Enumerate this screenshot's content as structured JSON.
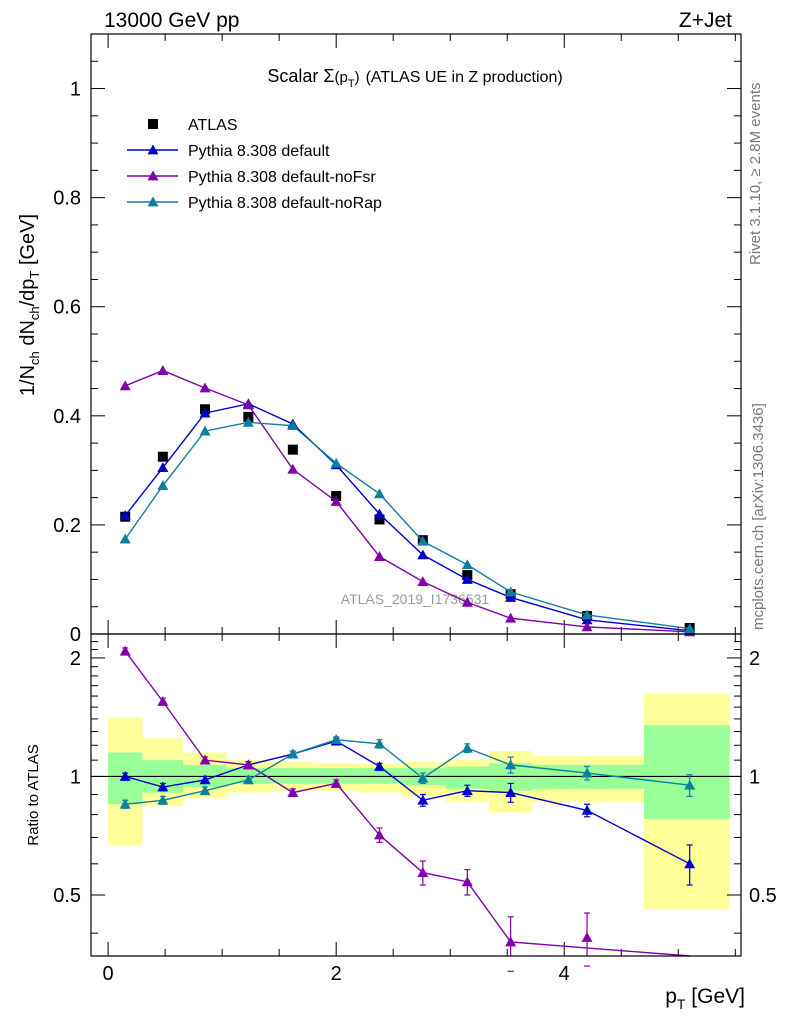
{
  "header": {
    "left": "13000 GeV pp",
    "right": "Z+Jet"
  },
  "side": {
    "rivet": "Rivet 3.1.10, ≥ 2.8M events",
    "mcplots": "mcplots.cern.ch [arXiv:1306.3436]"
  },
  "colors": {
    "atlas": "#000000",
    "default": "#0000cc",
    "noFsr": "#8000aa",
    "noRap": "#0f7fa0",
    "band_yellow": "#ffff99",
    "band_green": "#99ff99"
  },
  "chart_data": [
    {
      "type": "scatter",
      "panel": "main",
      "title_parts": {
        "prefix": "Scalar ",
        "sigma": "Σ",
        "arg_open": "(p",
        "arg_sub": "T",
        "arg_close": ")",
        "suffix": "(ATLAS UE in Z production)"
      },
      "ylabel_parts": [
        "1/N",
        "ch",
        " dN",
        "ch",
        "/dp",
        "T",
        " [GeV]"
      ],
      "xlim": [
        -0.15,
        5.55
      ],
      "ylim": [
        0,
        1.1
      ],
      "yticks": [
        0,
        0.2,
        0.4,
        0.6,
        0.8,
        1
      ],
      "ytick_labels": [
        "0",
        "0.2",
        "0.4",
        "0.6",
        "0.8",
        "1"
      ],
      "legend_position": "top-left",
      "watermark": "ATLAS_2019_I1736531",
      "x": [
        0.15,
        0.48,
        0.85,
        1.23,
        1.62,
        2.0,
        2.38,
        2.76,
        3.15,
        3.53,
        4.2,
        5.1
      ],
      "series": [
        {
          "name": "ATLAS",
          "marker": "square",
          "values": [
            0.215,
            0.325,
            0.412,
            0.398,
            0.338,
            0.253,
            0.21,
            0.172,
            0.108,
            0.073,
            0.033,
            0.011
          ]
        },
        {
          "name": "Pythia 8.308 default",
          "marker": "triangle",
          "values": [
            0.217,
            0.305,
            0.405,
            0.422,
            0.385,
            0.31,
            0.22,
            0.145,
            0.1,
            0.067,
            0.026,
            0.006
          ]
        },
        {
          "name": "Pythia 8.308 default-noFsr",
          "marker": "triangle",
          "values": [
            0.455,
            0.483,
            0.451,
            0.42,
            0.302,
            0.243,
            0.142,
            0.096,
            0.058,
            0.029,
            0.013,
            0.004
          ]
        },
        {
          "name": "Pythia 8.308 default-noRap",
          "marker": "triangle",
          "values": [
            0.174,
            0.272,
            0.372,
            0.388,
            0.382,
            0.313,
            0.257,
            0.17,
            0.127,
            0.077,
            0.035,
            0.01
          ]
        }
      ]
    },
    {
      "type": "line",
      "panel": "ratio",
      "ylabel": "Ratio to ATLAS",
      "xlabel_parts": [
        "p",
        "T",
        " [GeV]"
      ],
      "xlim": [
        -0.15,
        5.55
      ],
      "ylim": [
        0.35,
        2.3
      ],
      "xticks": [
        0,
        2,
        4
      ],
      "xtick_labels": [
        "0",
        "2",
        "4"
      ],
      "yticks": [
        0.5,
        1,
        2
      ],
      "ytick_labels": [
        "0.5",
        "1",
        "2"
      ],
      "bands": {
        "edges": [
          0,
          0.3,
          0.66,
          1.04,
          1.42,
          1.81,
          2.19,
          2.57,
          2.96,
          3.34,
          3.72,
          4.7,
          5.45
        ],
        "yellow_lo": [
          0.67,
          0.84,
          0.88,
          0.91,
          0.92,
          0.92,
          0.91,
          0.89,
          0.86,
          0.81,
          0.86,
          0.46
        ],
        "yellow_hi": [
          1.41,
          1.25,
          1.15,
          1.1,
          1.09,
          1.08,
          1.08,
          1.09,
          1.1,
          1.16,
          1.13,
          1.62
        ],
        "green_lo": [
          0.85,
          0.91,
          0.94,
          0.96,
          0.96,
          0.96,
          0.96,
          0.95,
          0.93,
          0.92,
          0.93,
          0.78
        ],
        "green_hi": [
          1.15,
          1.1,
          1.07,
          1.05,
          1.05,
          1.05,
          1.05,
          1.05,
          1.06,
          1.08,
          1.07,
          1.35
        ]
      },
      "x": [
        0.15,
        0.48,
        0.85,
        1.23,
        1.62,
        2.0,
        2.38,
        2.76,
        3.15,
        3.53,
        4.2,
        5.1
      ],
      "series": [
        {
          "name": "Pythia 8.308 default",
          "values": [
            1.0,
            0.94,
            0.98,
            1.07,
            1.14,
            1.23,
            1.06,
            0.87,
            0.92,
            0.91,
            0.82,
            0.6
          ],
          "errors": [
            0.02,
            0.02,
            0.02,
            0.02,
            0.02,
            0.02,
            0.02,
            0.03,
            0.03,
            0.05,
            0.03,
            0.07
          ]
        },
        {
          "name": "Pythia 8.308 default-noFsr",
          "values": [
            2.08,
            1.55,
            1.1,
            1.07,
            0.91,
            0.96,
            0.71,
            0.57,
            0.54,
            0.38,
            0.39,
            0.33
          ],
          "errors": [
            0.04,
            0.03,
            0.02,
            0.02,
            0.02,
            0.02,
            0.03,
            0.04,
            0.04,
            0.06,
            0.06,
            0.05
          ]
        },
        {
          "name": "Pythia 8.308 default-noRap",
          "values": [
            0.85,
            0.87,
            0.92,
            0.98,
            1.14,
            1.24,
            1.21,
            0.99,
            1.18,
            1.07,
            1.02,
            0.95
          ],
          "errors": [
            0.02,
            0.02,
            0.02,
            0.02,
            0.02,
            0.02,
            0.03,
            0.03,
            0.03,
            0.05,
            0.04,
            0.06
          ]
        }
      ]
    }
  ]
}
